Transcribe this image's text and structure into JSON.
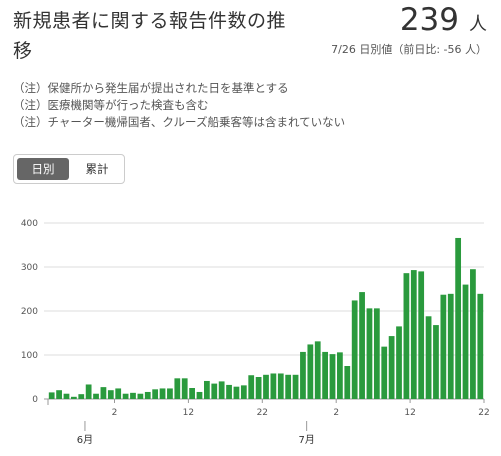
{
  "header": {
    "title": "新規患者に関する報告件数の推移",
    "count_value": "239",
    "count_unit": "人",
    "subtitle": "7/26 日別値（前日比: -56 人）"
  },
  "notes": [
    "（注）保健所から発生届が提出された日を基準とする",
    "（注）医療機関等が行った検査も含む",
    "（注）チャーター機帰国者、クルーズ船乗客等は含まれていない"
  ],
  "tabs": {
    "daily": "日別",
    "cumulative": "累計"
  },
  "colors": {
    "bar": "#2a9a3d",
    "grid": "#dddddd",
    "axis": "#999999"
  },
  "chart_data": {
    "type": "bar",
    "ylim": [
      0,
      400
    ],
    "y_ticks": [
      "0",
      "100",
      "200",
      "300",
      "400"
    ],
    "x_tick_labels": [
      "2",
      "12",
      "22",
      "2",
      "12",
      "22"
    ],
    "month_labels": [
      "6月",
      "7月"
    ],
    "values": [
      15,
      20,
      12,
      5,
      11,
      33,
      12,
      27,
      20,
      24,
      12,
      14,
      12,
      16,
      22,
      24,
      24,
      47,
      47,
      25,
      16,
      41,
      35,
      40,
      32,
      28,
      31,
      54,
      50,
      55,
      58,
      58,
      55,
      55,
      107,
      124,
      131,
      107,
      102,
      106,
      75,
      224,
      243,
      206,
      206,
      119,
      143,
      165,
      286,
      293,
      290,
      188,
      168,
      237,
      239,
      366,
      260,
      295,
      239
    ]
  }
}
